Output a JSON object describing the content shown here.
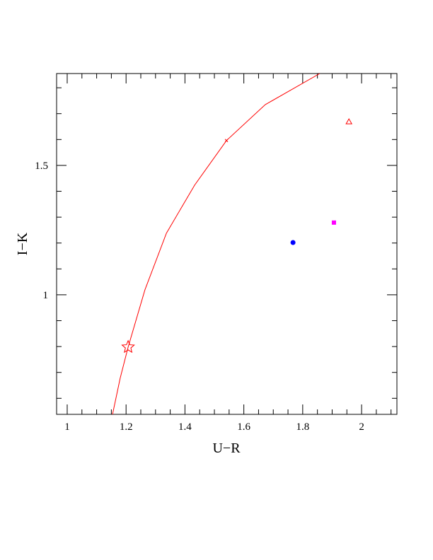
{
  "chart_data": {
    "type": "scatter",
    "xlabel": "U−R",
    "ylabel": "I−K",
    "xlim": [
      0.964,
      2.12
    ],
    "ylim": [
      0.538,
      1.855
    ],
    "xticks": [
      1,
      1.2,
      1.4,
      1.6,
      1.8,
      2
    ],
    "yticks": [
      1,
      1.5
    ],
    "xminor_ticks": [
      1.05,
      1.1,
      1.15,
      1.25,
      1.3,
      1.35,
      1.45,
      1.5,
      1.55,
      1.65,
      1.7,
      1.75,
      1.85,
      1.9,
      1.95,
      2.05,
      2.1
    ],
    "yminor_ticks": [
      0.6,
      0.7,
      0.8,
      0.9,
      1.1,
      1.2,
      1.3,
      1.4,
      1.6,
      1.7,
      1.8
    ],
    "series": [
      {
        "marker": "line",
        "color": "#ff0000",
        "x": [
          1.154,
          1.18,
          1.207,
          1.264,
          1.337,
          1.433,
          1.541,
          1.673,
          1.858
        ],
        "y": [
          0.538,
          0.678,
          0.798,
          1.019,
          1.238,
          1.424,
          1.596,
          1.735,
          1.855
        ]
      },
      {
        "marker": "star",
        "color": "#ff0000",
        "x": [
          1.207
        ],
        "y": [
          0.798
        ]
      },
      {
        "marker": "cross",
        "color": "#ff0000",
        "x": [
          1.541
        ],
        "y": [
          1.596
        ]
      },
      {
        "marker": "triangle",
        "color": "#ff0000",
        "x": [
          1.957
        ],
        "y": [
          1.669
        ]
      },
      {
        "marker": "square",
        "color": "#ff00ff",
        "x": [
          1.906
        ],
        "y": [
          1.279
        ]
      },
      {
        "marker": "circle",
        "color": "#0000ff",
        "x": [
          1.767
        ],
        "y": [
          1.202
        ]
      }
    ]
  }
}
